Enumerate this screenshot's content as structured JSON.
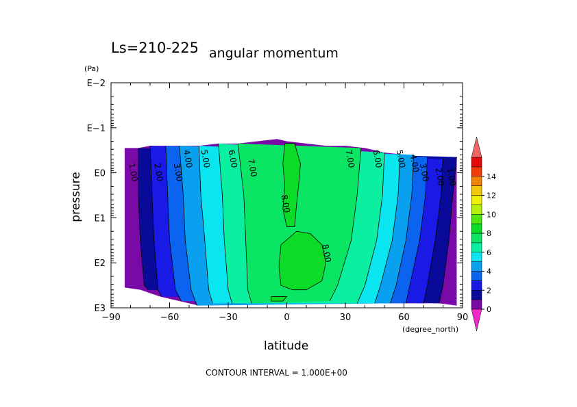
{
  "chart_data": {
    "type": "contour",
    "title": "angular momentum",
    "subtitle": "Ls=210-225",
    "xlabel": "latitude",
    "x_unit": "(degree_north)",
    "ylabel": "pressure",
    "y_unit": "(Pa)",
    "x_ticks": [
      "−90",
      "−60",
      "−30",
      "0",
      "30",
      "60",
      "90"
    ],
    "y_ticks": [
      "E3",
      "E2",
      "E1",
      "E0",
      "E−1",
      "E−2"
    ],
    "xlim": [
      -90,
      90
    ],
    "ylim_log10_pressure": [
      3,
      -2
    ],
    "y_scale": "log",
    "footer": "CONTOUR INTERVAL = 1.000E+00",
    "colorbar": {
      "levels": [
        0,
        1,
        2,
        3,
        4,
        5,
        6,
        7,
        8,
        9,
        10,
        11,
        12,
        13,
        14,
        15
      ],
      "labels": [
        "0",
        "2",
        "4",
        "6",
        "8",
        "10",
        "12",
        "14"
      ],
      "colors": [
        "#7a0aa8",
        "#0a0a9a",
        "#1a1ae6",
        "#0a64f0",
        "#0aa0f0",
        "#0ae6f0",
        "#0af0a0",
        "#0ae664",
        "#0adc28",
        "#50e60a",
        "#b4f00a",
        "#f0f00a",
        "#f0c80a",
        "#f0820a",
        "#f03c0a",
        "#e60a0a"
      ],
      "under_color": "#f028c8",
      "over_color": "#f06464"
    },
    "contour_labels": [
      {
        "text": "1.00",
        "lat": -80,
        "logp": 0
      },
      {
        "text": "2.00",
        "lat": -67,
        "logp": 0
      },
      {
        "text": "3.00",
        "lat": -57,
        "logp": 0
      },
      {
        "text": "4.00",
        "lat": -52,
        "logp": -0.3
      },
      {
        "text": "5.00",
        "lat": -43,
        "logp": -0.3
      },
      {
        "text": "6.00",
        "lat": -29,
        "logp": -0.3
      },
      {
        "text": "7.00",
        "lat": -19,
        "logp": -0.1
      },
      {
        "text": "8.00",
        "lat": -2,
        "logp": 0.7
      },
      {
        "text": "7.00",
        "lat": 31,
        "logp": -0.3
      },
      {
        "text": "6.00",
        "lat": 45,
        "logp": -0.3
      },
      {
        "text": "5.00",
        "lat": 57,
        "logp": -0.3
      },
      {
        "text": "4.00",
        "lat": 64,
        "logp": -0.2
      },
      {
        "text": "3.00",
        "lat": 69,
        "logp": 0
      },
      {
        "text": "2.00",
        "lat": 77,
        "logp": 0.1
      },
      {
        "text": "1.00",
        "lat": 83,
        "logp": 0.1
      },
      {
        "text": "8.00",
        "lat": 19,
        "logp": 1.8
      }
    ],
    "bands": [
      {
        "level": 0,
        "left": [
          [
            -84,
            0.4
          ],
          [
            -84,
            0
          ],
          [
            -84,
            1
          ],
          [
            -84,
            2
          ],
          [
            -84,
            2.6
          ]
        ],
        "right": [
          [
            88,
            0.7
          ],
          [
            88,
            2.9
          ]
        ]
      },
      {
        "level": 1,
        "left": [
          [
            -76,
            0.4
          ],
          [
            -76,
            2.6
          ]
        ],
        "right": [
          [
            79,
            0.8
          ],
          [
            74,
            2.9
          ]
        ]
      },
      {
        "level": 2,
        "left": [
          [
            -69,
            0.4
          ],
          [
            -69,
            2.7
          ]
        ],
        "right": [
          [
            74,
            0.8
          ],
          [
            66,
            2.9
          ]
        ]
      },
      {
        "level": 3,
        "left": [
          [
            -62,
            0.4
          ],
          [
            -59,
            2.8
          ]
        ],
        "right": [
          [
            68,
            0.8
          ],
          [
            57,
            2.9
          ]
        ]
      },
      {
        "level": 4,
        "left": [
          [
            -54,
            0.35
          ],
          [
            -49,
            2.9
          ]
        ],
        "right": [
          [
            60,
            0.7
          ],
          [
            47,
            2.9
          ]
        ]
      },
      {
        "level": 5,
        "left": [
          [
            -45,
            0.3
          ],
          [
            -39,
            2.9
          ]
        ],
        "right": [
          [
            51,
            0.6
          ],
          [
            37,
            2.9
          ]
        ]
      },
      {
        "level": 6,
        "left": [
          [
            -34,
            0.3
          ],
          [
            -27,
            2.9
          ]
        ],
        "right": [
          [
            40,
            0.5
          ],
          [
            23,
            2.9
          ]
        ]
      }
    ]
  }
}
